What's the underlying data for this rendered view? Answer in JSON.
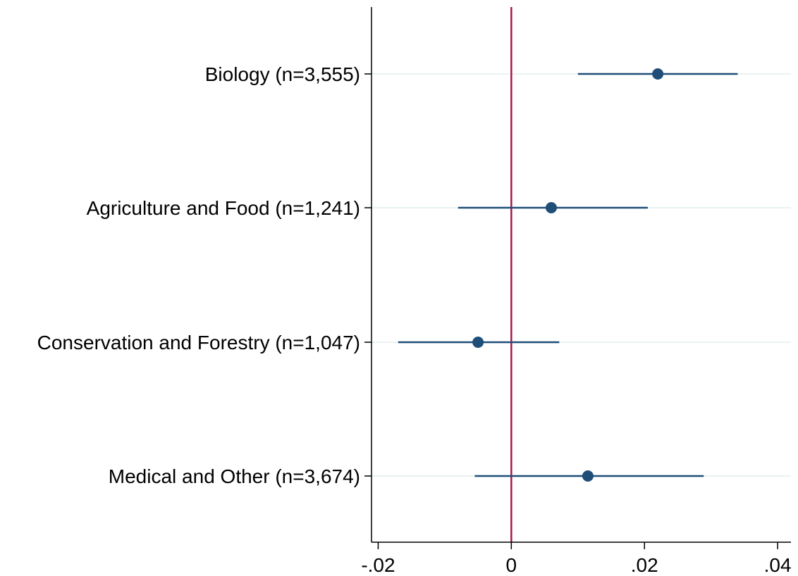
{
  "chart_data": {
    "type": "scatter",
    "subtype": "coefficient-plot",
    "title": "",
    "xlabel": "",
    "ylabel": "",
    "xlim": [
      -0.021,
      0.042
    ],
    "xticks": [
      -0.02,
      0,
      0.02,
      0.04
    ],
    "xtick_labels": [
      "-.02",
      "0",
      ".02",
      ".04"
    ],
    "reference_line_x": 0,
    "grid": "horizontal",
    "legend": "none",
    "categories": [
      "Biology (n=3,555)",
      "Agriculture and Food (n=1,241)",
      "Conservation and Forestry (n=1,047)",
      "Medical and Other (n=3,674)"
    ],
    "series": [
      {
        "estimates": [
          0.022,
          0.006,
          -0.005,
          0.0115
        ],
        "ci_lower": [
          0.01,
          -0.008,
          -0.017,
          -0.0055
        ],
        "ci_upper": [
          0.034,
          0.0205,
          0.0072,
          0.0289
        ]
      }
    ],
    "colors": {
      "marker": "#1f4e79",
      "reference_line": "#a8174a",
      "grid": "#eaf2f3",
      "axis": "#000000"
    }
  }
}
